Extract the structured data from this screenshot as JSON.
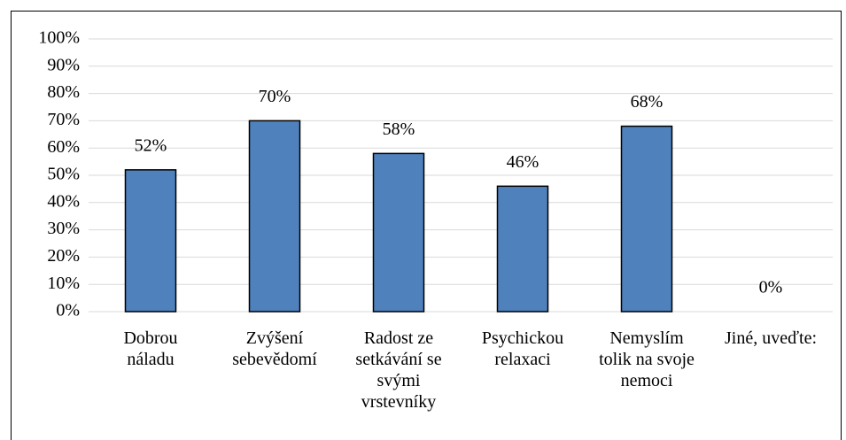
{
  "chart_data": {
    "type": "bar",
    "categories": [
      "Dobrou náladu",
      "Zvýšení sebevědomí",
      "Radost ze setkávání se svými vrstevníky",
      "Psychickou relaxaci",
      "Nemyslím tolik na svoje nemoci",
      "Jiné, uveďte:"
    ],
    "values": [
      52,
      70,
      58,
      46,
      68,
      0
    ],
    "value_labels": [
      "52%",
      "70%",
      "58%",
      "46%",
      "68%",
      "0%"
    ],
    "color": "#4f81bd",
    "ylim": [
      0,
      100
    ],
    "yticks": [
      {
        "value": 0,
        "label": "0%"
      },
      {
        "value": 10,
        "label": "10%"
      },
      {
        "value": 20,
        "label": "20%"
      },
      {
        "value": 30,
        "label": "30%"
      },
      {
        "value": 40,
        "label": "40%"
      },
      {
        "value": 50,
        "label": "50%"
      },
      {
        "value": 60,
        "label": "60%"
      },
      {
        "value": 70,
        "label": "70%"
      },
      {
        "value": 80,
        "label": "80%"
      },
      {
        "value": 90,
        "label": "90%"
      },
      {
        "value": 100,
        "label": "100%"
      }
    ],
    "grid": true
  }
}
